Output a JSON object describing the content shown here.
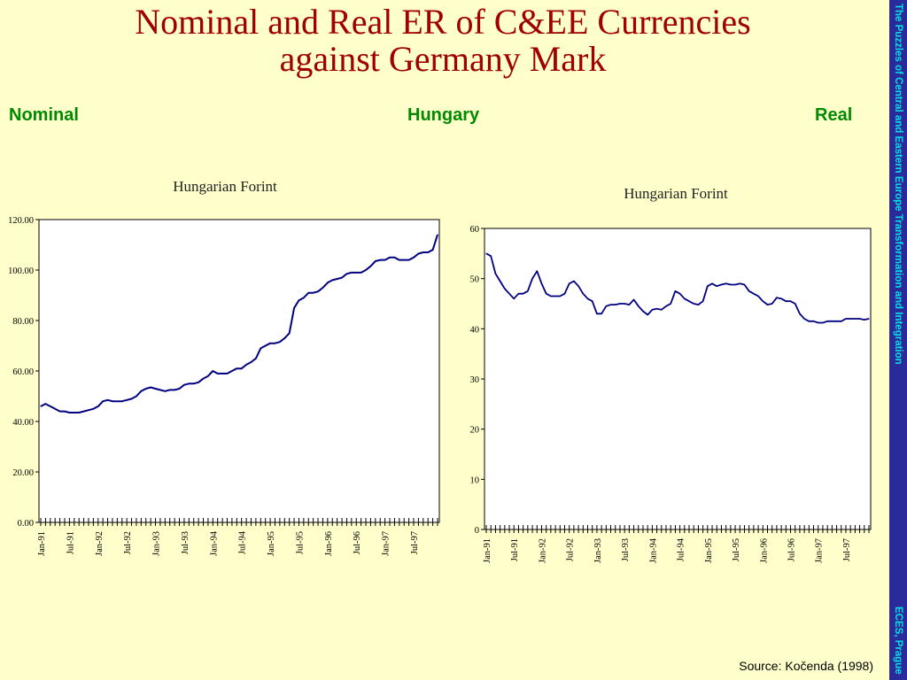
{
  "slide": {
    "title_line1": "Nominal and Real ER of C&EE Currencies",
    "title_line2": "against Germany Mark",
    "label_left": "Nominal",
    "label_center": "Hungary",
    "label_right": "Real",
    "source": "Source: Kočenda (1998)",
    "sidebar_top": "The Puzzles of Central and Eastern Europe Transformation and Integration",
    "sidebar_bottom": "ECES, Prague"
  },
  "colors": {
    "background": "#ffffcc",
    "title": "#a00000",
    "labels": "#008a00",
    "sidebar": "#2a2a9a",
    "sidebar_text": "#00e0e0",
    "line": "#000080"
  },
  "chart_data": [
    {
      "type": "line",
      "title": "Hungarian Forint",
      "ylim": [
        0,
        120
      ],
      "yticks": [
        "0.00",
        "20.00",
        "40.00",
        "60.00",
        "80.00",
        "100.00",
        "120.00"
      ],
      "xticks": [
        "Jan-91",
        "Jul-91",
        "Jan-92",
        "Jul-92",
        "Jan-93",
        "Jul-93",
        "Jan-94",
        "Jul-94",
        "Jan-95",
        "Jul-95",
        "Jan-96",
        "Jul-96",
        "Jan-97",
        "Jul-97"
      ],
      "series": [
        {
          "x": [
            0,
            1,
            2,
            3,
            4,
            5,
            6,
            7,
            8,
            9,
            10,
            11,
            12,
            13,
            14,
            15,
            16,
            17,
            18,
            19,
            20,
            21,
            22,
            23,
            24,
            25,
            26,
            27,
            28,
            29,
            30,
            31,
            32,
            33,
            34,
            35,
            36,
            37,
            38,
            39,
            40,
            41,
            42,
            43,
            44,
            45,
            46,
            47,
            48,
            49,
            50,
            51,
            52,
            53,
            54,
            55,
            56,
            57,
            58,
            59,
            60,
            61,
            62,
            63,
            64,
            65,
            66,
            67,
            68,
            69,
            70,
            71,
            72,
            73,
            74,
            75,
            76,
            77,
            78,
            79,
            80,
            81,
            82,
            83
          ],
          "y": [
            46,
            47,
            46,
            45,
            44,
            44,
            43.5,
            43.5,
            43.5,
            44,
            44.5,
            45,
            46,
            48,
            48.5,
            48,
            48,
            48,
            48.5,
            49,
            50,
            52,
            53,
            53.5,
            53,
            52.5,
            52,
            52.5,
            52.5,
            53,
            54.5,
            55,
            55,
            55.5,
            57,
            58,
            60,
            59,
            59,
            59,
            60,
            61,
            61,
            62.5,
            63.5,
            65,
            69,
            70,
            71,
            71,
            71.5,
            73,
            75,
            85,
            88,
            89,
            91,
            91,
            91.5,
            93,
            95,
            96,
            96.5,
            97,
            98.5,
            99,
            99,
            99,
            100,
            101.5,
            103.5,
            104,
            104,
            105,
            105,
            104,
            104,
            104,
            105,
            106.5,
            107,
            107,
            108,
            114
          ]
        }
      ]
    },
    {
      "type": "line",
      "title": "Hungarian Forint",
      "ylim": [
        0,
        60
      ],
      "yticks": [
        "0",
        "10",
        "20",
        "30",
        "40",
        "50",
        "60"
      ],
      "xticks": [
        "Jan-91",
        "Jul-91",
        "Jan-92",
        "Jul-92",
        "Jan-93",
        "Jul-93",
        "Jan-94",
        "Jul-94",
        "Jan-95",
        "Jul-95",
        "Jan-96",
        "Jul-96",
        "Jan-97",
        "Jul-97"
      ],
      "series": [
        {
          "x": [
            0,
            1,
            2,
            3,
            4,
            5,
            6,
            7,
            8,
            9,
            10,
            11,
            12,
            13,
            14,
            15,
            16,
            17,
            18,
            19,
            20,
            21,
            22,
            23,
            24,
            25,
            26,
            27,
            28,
            29,
            30,
            31,
            32,
            33,
            34,
            35,
            36,
            37,
            38,
            39,
            40,
            41,
            42,
            43,
            44,
            45,
            46,
            47,
            48,
            49,
            50,
            51,
            52,
            53,
            54,
            55,
            56,
            57,
            58,
            59,
            60,
            61,
            62,
            63,
            64,
            65,
            66,
            67,
            68,
            69,
            70,
            71,
            72,
            73,
            74,
            75,
            76,
            77,
            78,
            79,
            80,
            81,
            82,
            83
          ],
          "y": [
            55,
            54.5,
            51,
            49.5,
            48,
            47,
            46,
            47,
            47,
            47.5,
            50,
            51.5,
            49,
            47,
            46.5,
            46.5,
            46.5,
            47,
            49,
            49.5,
            48.5,
            47,
            46,
            45.5,
            43,
            43,
            44.5,
            44.8,
            44.8,
            45,
            45,
            44.8,
            45.8,
            44.5,
            43.5,
            42.8,
            43.8,
            44,
            43.8,
            44.5,
            45,
            47.5,
            47,
            46,
            45.5,
            45,
            44.8,
            45.5,
            48.5,
            49,
            48.5,
            48.8,
            49,
            48.8,
            48.8,
            49,
            48.8,
            47.5,
            47,
            46.5,
            45.5,
            44.8,
            45,
            46.2,
            46,
            45.5,
            45.5,
            45,
            43,
            42,
            41.5,
            41.5,
            41.2,
            41.2,
            41.5,
            41.5,
            41.5,
            41.5,
            42,
            42,
            42,
            42,
            41.8,
            42
          ]
        }
      ]
    }
  ]
}
